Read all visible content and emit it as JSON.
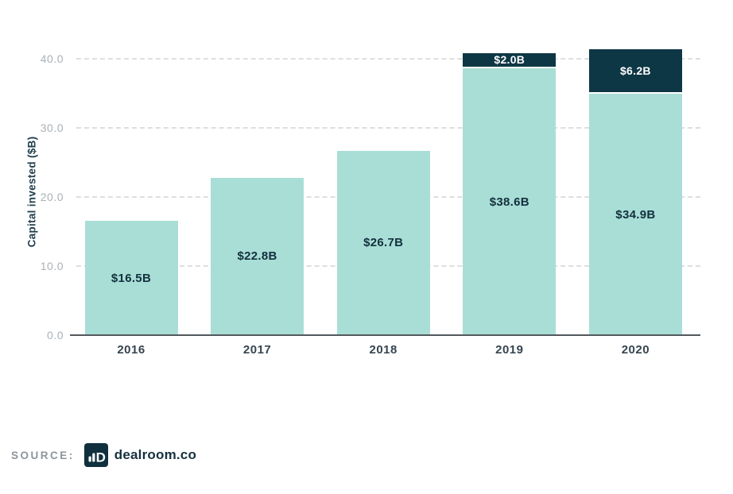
{
  "chart_data": {
    "type": "bar",
    "stacked": true,
    "title": "",
    "categories": [
      "2016",
      "2017",
      "2018",
      "2019",
      "2020"
    ],
    "series": [
      {
        "name": "capital-invested-base",
        "color": "#a9ded6",
        "label_color": "#12303e",
        "values": [
          16.5,
          22.8,
          26.7,
          38.6,
          34.9
        ],
        "labels": [
          "$16.5B",
          "$22.8B",
          "$26.7B",
          "$38.6B",
          "$34.9B"
        ]
      },
      {
        "name": "capital-invested-top",
        "color": "#0e3745",
        "label_color": "#ffffff",
        "values": [
          0,
          0,
          0,
          2.0,
          6.2
        ],
        "labels": [
          "",
          "",
          "",
          "$2.0B",
          "$6.2B"
        ]
      }
    ],
    "xlabel": "",
    "ylabel": "Capital invested ($B)",
    "yticks": [
      0,
      10,
      20,
      30,
      40
    ],
    "ytick_labels": [
      "0.0",
      "10.0",
      "20.0",
      "30.0",
      "40.0"
    ],
    "ylim": [
      0,
      41.5
    ],
    "grid": "horizontal-dashed",
    "legend": "none"
  },
  "colors": {
    "bar_teal": "#a9ded6",
    "bar_navy": "#0e3745",
    "gridline": "#dedede",
    "axis_line": "#53585c",
    "tick_label": "#aab1b6",
    "year_label": "#36454f",
    "background": "#ffffff"
  },
  "source": {
    "label": "SOURCE:",
    "name": "dealroom.co",
    "logo": "dealroom-logo"
  }
}
